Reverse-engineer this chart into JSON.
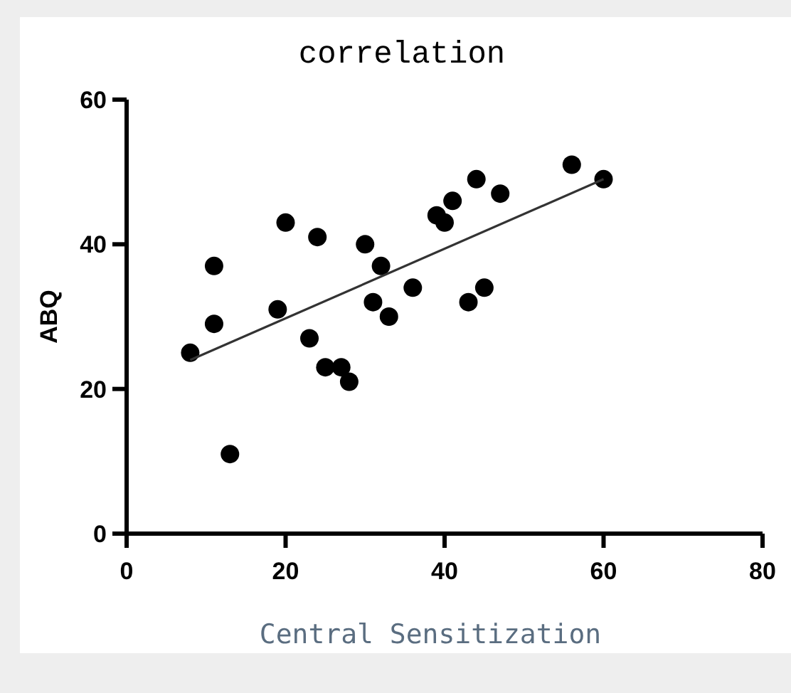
{
  "chart_data": {
    "type": "scatter",
    "title": "correlation",
    "xlabel": "Central Sensitization",
    "ylabel": "ABQ",
    "xlim": [
      0,
      80
    ],
    "ylim": [
      0,
      60
    ],
    "xticks": [
      0,
      20,
      40,
      60,
      80
    ],
    "yticks": [
      0,
      20,
      40,
      60
    ],
    "marker": "circle",
    "grid": false,
    "series": [
      {
        "color": "#000000",
        "x": [
          8,
          11,
          11,
          13,
          19,
          20,
          23,
          24,
          25,
          27,
          28,
          30,
          31,
          32,
          33,
          36,
          39,
          40,
          41,
          43,
          44,
          45,
          47,
          56,
          60
        ],
        "values": [
          25,
          37,
          29,
          11,
          31,
          43,
          27,
          41,
          23,
          23,
          21,
          40,
          32,
          37,
          30,
          34,
          44,
          43,
          46,
          32,
          49,
          34,
          47,
          51,
          49
        ]
      },
      {
        "type": "line",
        "color": "#333333",
        "marker": "none",
        "x": [
          8,
          60
        ],
        "values": [
          24,
          49
        ]
      }
    ]
  }
}
